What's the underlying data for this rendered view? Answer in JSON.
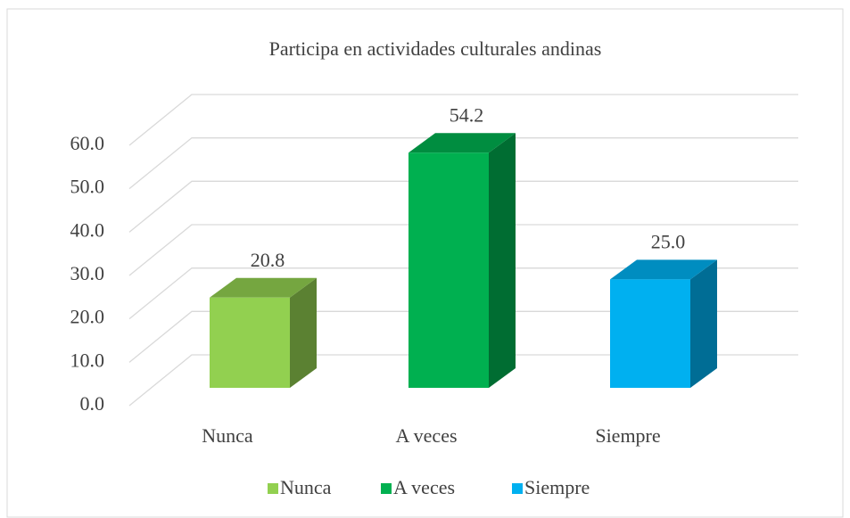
{
  "chart_data": {
    "type": "bar3d",
    "title": "Participa en actividades culturales andinas",
    "categories": [
      "Nunca",
      "A veces",
      "Siempre"
    ],
    "values": [
      20.8,
      54.2,
      25.0
    ],
    "value_labels": [
      "20.8",
      "54.2",
      "25.0"
    ],
    "colors": [
      "#92d050",
      "#00b050",
      "#00b0f0"
    ],
    "ylim": [
      0,
      60
    ],
    "yticks": [
      {
        "value": 0,
        "label": "0.0"
      },
      {
        "value": 10,
        "label": "10.0"
      },
      {
        "value": 20,
        "label": "20.0"
      },
      {
        "value": 30,
        "label": "30.0"
      },
      {
        "value": 40,
        "label": "40.0"
      },
      {
        "value": 50,
        "label": "50.0"
      },
      {
        "value": 60,
        "label": "60.0"
      }
    ],
    "grid": true,
    "legend": "bottom"
  }
}
